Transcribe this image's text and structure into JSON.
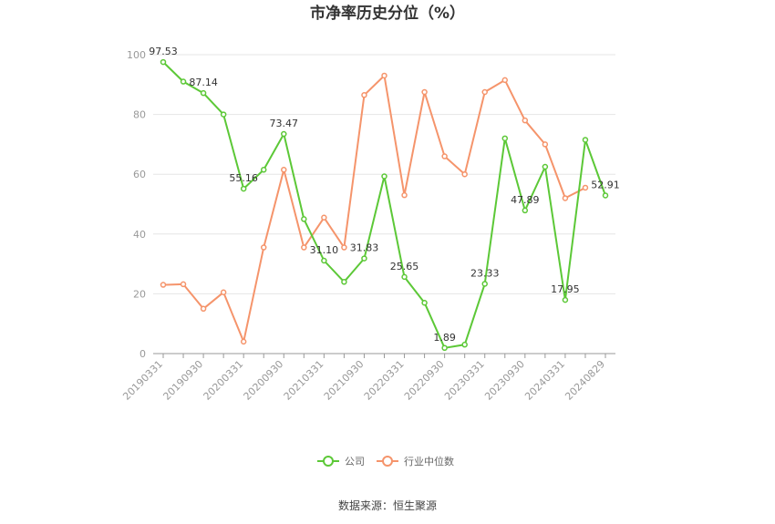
{
  "colors": {
    "company": "#5cc837",
    "industry": "#f5946b",
    "grid": "#e6e6e6",
    "axis": "#999999"
  },
  "source": "数据来源：恒生聚源",
  "chart_data": {
    "type": "line",
    "title": "市净率历史分位（%）",
    "ylim": [
      0,
      100
    ],
    "yticks": [
      0,
      20,
      40,
      60,
      80,
      100
    ],
    "grid": true,
    "legend_position": "bottom",
    "x_tick_labels": [
      "20190331",
      "20190930",
      "20200331",
      "20200930",
      "20210331",
      "20210930",
      "20220331",
      "20220930",
      "20230331",
      "20230930",
      "20240331",
      "20240829"
    ],
    "x": [
      "20190331",
      "20190630",
      "20190930",
      "20191231",
      "20200331",
      "20200630",
      "20200930",
      "20201231",
      "20210331",
      "20210630",
      "20210930",
      "20211231",
      "20220331",
      "20220630",
      "20220930",
      "20221231",
      "20230331",
      "20230630",
      "20230930",
      "20231231",
      "20240331",
      "20240630",
      "20240829"
    ],
    "series": [
      {
        "name": "公司",
        "values": [
          97.53,
          91,
          87.14,
          80,
          55.16,
          61.5,
          73.47,
          45,
          31.1,
          24,
          31.83,
          59.3,
          25.65,
          17,
          1.89,
          3,
          23.33,
          72,
          47.89,
          62.5,
          17.95,
          71.5,
          52.91
        ],
        "labels": {
          "0": "97.53",
          "2": "87.14",
          "4": "55.16",
          "6": "73.47",
          "8": "31.10",
          "10": "31.83",
          "12": "25.65",
          "14": "1.89",
          "16": "23.33",
          "18": "47.89",
          "20": "17.95",
          "22": "52.91"
        }
      },
      {
        "name": "行业中位数",
        "values": [
          23,
          23.2,
          15,
          20.5,
          4,
          35.5,
          61.5,
          35.5,
          45.5,
          35.5,
          86.5,
          93,
          53,
          87.5,
          66,
          60,
          87.5,
          91.5,
          78,
          70,
          52,
          55.5,
          null
        ]
      }
    ]
  }
}
